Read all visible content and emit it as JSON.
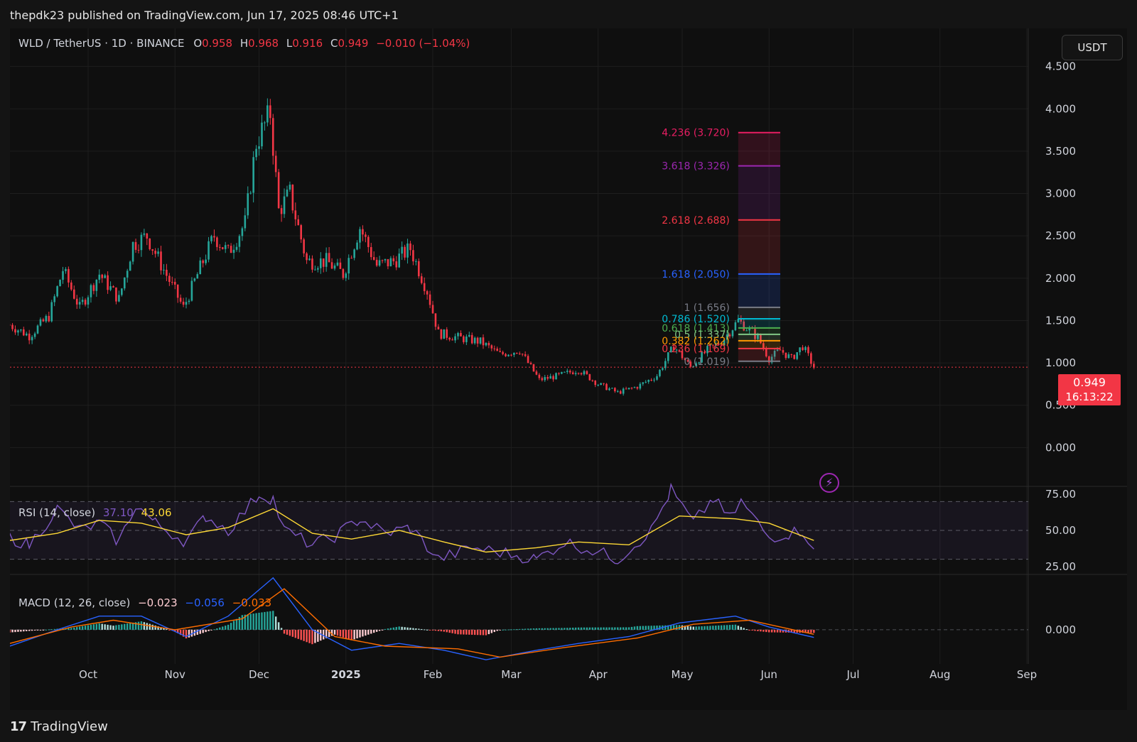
{
  "header": {
    "published_by": "thepdk23 published on TradingView.com, Jun 17, 2025 08:46 UTC+1"
  },
  "symbol_legend": {
    "symbol": "WLD / TetherUS · 1D · BINANCE",
    "open_label": "O",
    "open": "0.958",
    "high_label": "H",
    "high": "0.968",
    "low_label": "L",
    "low": "0.916",
    "close_label": "C",
    "close": "0.949",
    "change": "−0.010 (−1.04%)"
  },
  "currency_button": "USDT",
  "price_badge": {
    "price": "0.949",
    "countdown": "16:13:22"
  },
  "footer": {
    "logo": "17",
    "brand": "TradingView"
  },
  "colors": {
    "up": "#26a69a",
    "down": "#f23645",
    "rsi": "#7e57c2",
    "rsi_ma": "#fdd835",
    "macd": "#2962ff",
    "signal": "#ff6d00"
  },
  "chart_data": [
    {
      "type": "candlestick",
      "title": "WLD / TetherUS · 1D · BINANCE",
      "x_tick_labels": [
        "Oct",
        "Nov",
        "Dec",
        "2025",
        "Feb",
        "Mar",
        "Apr",
        "May",
        "Jun",
        "Jul",
        "Aug",
        "Sep"
      ],
      "x_ticks": [
        "2024-10-01",
        "2024-11-01",
        "2024-12-01",
        "2025-01-01",
        "2025-02-01",
        "2025-03-01",
        "2025-04-01",
        "2025-05-01",
        "2025-06-01",
        "2025-07-01",
        "2025-08-01",
        "2025-09-01"
      ],
      "y_tick_labels": [
        "4.500",
        "4.000",
        "3.500",
        "3.000",
        "2.500",
        "2.000",
        "1.500",
        "1.000",
        "0.500",
        "0.000"
      ],
      "y_ticks": [
        4.5,
        4.0,
        3.5,
        3.0,
        2.5,
        2.0,
        1.5,
        1.0,
        0.5,
        0.0
      ],
      "ylim": [
        -0.45,
        4.95
      ],
      "last_price": 0.949,
      "close_path": [
        {
          "date": "2024-09-03",
          "close": 1.45
        },
        {
          "date": "2024-09-10",
          "close": 1.32
        },
        {
          "date": "2024-09-17",
          "close": 1.55
        },
        {
          "date": "2024-09-22",
          "close": 2.1
        },
        {
          "date": "2024-09-28",
          "close": 1.65
        },
        {
          "date": "2024-10-05",
          "close": 2.05
        },
        {
          "date": "2024-10-12",
          "close": 1.75
        },
        {
          "date": "2024-10-17",
          "close": 2.4
        },
        {
          "date": "2024-10-22",
          "close": 2.5
        },
        {
          "date": "2024-10-28",
          "close": 2.1
        },
        {
          "date": "2024-11-04",
          "close": 1.65
        },
        {
          "date": "2024-11-11",
          "close": 2.2
        },
        {
          "date": "2024-11-15",
          "close": 2.5
        },
        {
          "date": "2024-11-20",
          "close": 2.3
        },
        {
          "date": "2024-11-26",
          "close": 2.65
        },
        {
          "date": "2024-11-30",
          "close": 3.6
        },
        {
          "date": "2024-12-05",
          "close": 3.95
        },
        {
          "date": "2024-12-08",
          "close": 2.8
        },
        {
          "date": "2024-12-12",
          "close": 3.0
        },
        {
          "date": "2024-12-18",
          "close": 2.2
        },
        {
          "date": "2024-12-25",
          "close": 2.2
        },
        {
          "date": "2024-12-31",
          "close": 2.05
        },
        {
          "date": "2025-01-06",
          "close": 2.6
        },
        {
          "date": "2025-01-12",
          "close": 2.15
        },
        {
          "date": "2025-01-18",
          "close": 2.2
        },
        {
          "date": "2025-01-24",
          "close": 2.35
        },
        {
          "date": "2025-01-30",
          "close": 1.85
        },
        {
          "date": "2025-02-03",
          "close": 1.35
        },
        {
          "date": "2025-02-10",
          "close": 1.3
        },
        {
          "date": "2025-02-18",
          "close": 1.25
        },
        {
          "date": "2025-02-25",
          "close": 1.1
        },
        {
          "date": "2025-03-04",
          "close": 1.15
        },
        {
          "date": "2025-03-11",
          "close": 0.8
        },
        {
          "date": "2025-03-18",
          "close": 0.85
        },
        {
          "date": "2025-03-25",
          "close": 0.92
        },
        {
          "date": "2025-04-01",
          "close": 0.75
        },
        {
          "date": "2025-04-08",
          "close": 0.65
        },
        {
          "date": "2025-04-15",
          "close": 0.72
        },
        {
          "date": "2025-04-22",
          "close": 0.85
        },
        {
          "date": "2025-04-28",
          "close": 1.2
        },
        {
          "date": "2025-05-04",
          "close": 0.95
        },
        {
          "date": "2025-05-10",
          "close": 1.15
        },
        {
          "date": "2025-05-15",
          "close": 1.25
        },
        {
          "date": "2025-05-21",
          "close": 1.5
        },
        {
          "date": "2025-05-28",
          "close": 1.3
        },
        {
          "date": "2025-06-01",
          "close": 1.05
        },
        {
          "date": "2025-06-05",
          "close": 1.15
        },
        {
          "date": "2025-06-09",
          "close": 1.05
        },
        {
          "date": "2025-06-13",
          "close": 1.2
        },
        {
          "date": "2025-06-17",
          "close": 0.949
        }
      ],
      "fibonacci_extension": {
        "levels": [
          {
            "ratio": "4.236",
            "price": "3.720",
            "color": "#e91e63"
          },
          {
            "ratio": "3.618",
            "price": "3.326",
            "color": "#9c27b0"
          },
          {
            "ratio": "2.618",
            "price": "2.688",
            "color": "#f23645"
          },
          {
            "ratio": "1.618",
            "price": "2.050",
            "color": "#2962ff"
          },
          {
            "ratio": "1",
            "price": "1.656",
            "color": "#787b86"
          },
          {
            "ratio": "0.786",
            "price": "1.520",
            "color": "#00bcd4"
          },
          {
            "ratio": "0.618",
            "price": "1.413",
            "color": "#4caf50"
          },
          {
            "ratio": "0.5",
            "price": "1.337",
            "color": "#81c784"
          },
          {
            "ratio": "0.382",
            "price": "1.262",
            "color": "#ff9800"
          },
          {
            "ratio": "0.236",
            "price": "1.169",
            "color": "#f23645"
          },
          {
            "ratio": "0",
            "price": "1.019",
            "color": "#787b86"
          }
        ],
        "start_date": "2025-05-21",
        "end_date": "2025-06-05"
      }
    },
    {
      "type": "line",
      "title": "RSI (14, close)",
      "series": [
        {
          "name": "RSI",
          "value": "37.10"
        },
        {
          "name": "RSI-based MA",
          "value": "43.06"
        }
      ],
      "y_tick_labels": [
        "75.00",
        "50.00",
        "25.00"
      ],
      "y_ticks": [
        75,
        50,
        25
      ],
      "bands": {
        "upper": 70,
        "middle": 50,
        "lower": 30
      },
      "ylim": [
        20,
        80
      ],
      "rsi_path": [
        {
          "date": "2024-09-03",
          "v": 45
        },
        {
          "date": "2024-09-10",
          "v": 40
        },
        {
          "date": "2024-09-20",
          "v": 65
        },
        {
          "date": "2024-09-28",
          "v": 50
        },
        {
          "date": "2024-10-05",
          "v": 55
        },
        {
          "date": "2024-10-12",
          "v": 42
        },
        {
          "date": "2024-10-18",
          "v": 68
        },
        {
          "date": "2024-10-25",
          "v": 55
        },
        {
          "date": "2024-11-05",
          "v": 42
        },
        {
          "date": "2024-11-12",
          "v": 60
        },
        {
          "date": "2024-11-20",
          "v": 50
        },
        {
          "date": "2024-12-01",
          "v": 75
        },
        {
          "date": "2024-12-06",
          "v": 72
        },
        {
          "date": "2024-12-10",
          "v": 50
        },
        {
          "date": "2024-12-20",
          "v": 40
        },
        {
          "date": "2024-12-28",
          "v": 46
        },
        {
          "date": "2025-01-06",
          "v": 58
        },
        {
          "date": "2025-01-15",
          "v": 48
        },
        {
          "date": "2025-01-24",
          "v": 52
        },
        {
          "date": "2025-02-03",
          "v": 30
        },
        {
          "date": "2025-02-15",
          "v": 38
        },
        {
          "date": "2025-02-25",
          "v": 35
        },
        {
          "date": "2025-03-10",
          "v": 30
        },
        {
          "date": "2025-03-20",
          "v": 42
        },
        {
          "date": "2025-04-01",
          "v": 35
        },
        {
          "date": "2025-04-08",
          "v": 30
        },
        {
          "date": "2025-04-20",
          "v": 50
        },
        {
          "date": "2025-04-27",
          "v": 78
        },
        {
          "date": "2025-05-05",
          "v": 55
        },
        {
          "date": "2025-05-12",
          "v": 72
        },
        {
          "date": "2025-05-18",
          "v": 58
        },
        {
          "date": "2025-05-22",
          "v": 70
        },
        {
          "date": "2025-06-01",
          "v": 45
        },
        {
          "date": "2025-06-08",
          "v": 48
        },
        {
          "date": "2025-06-13",
          "v": 50
        },
        {
          "date": "2025-06-17",
          "v": 37.1
        }
      ],
      "ma_path": [
        {
          "date": "2024-09-03",
          "v": 43
        },
        {
          "date": "2024-09-20",
          "v": 48
        },
        {
          "date": "2024-10-05",
          "v": 57
        },
        {
          "date": "2024-10-20",
          "v": 55
        },
        {
          "date": "2024-11-05",
          "v": 47
        },
        {
          "date": "2024-11-20",
          "v": 52
        },
        {
          "date": "2024-12-06",
          "v": 65
        },
        {
          "date": "2024-12-20",
          "v": 48
        },
        {
          "date": "2025-01-03",
          "v": 44
        },
        {
          "date": "2025-01-20",
          "v": 50
        },
        {
          "date": "2025-02-05",
          "v": 42
        },
        {
          "date": "2025-02-20",
          "v": 35
        },
        {
          "date": "2025-03-10",
          "v": 38
        },
        {
          "date": "2025-03-25",
          "v": 42
        },
        {
          "date": "2025-04-12",
          "v": 40
        },
        {
          "date": "2025-04-30",
          "v": 60
        },
        {
          "date": "2025-05-20",
          "v": 58
        },
        {
          "date": "2025-06-01",
          "v": 55
        },
        {
          "date": "2025-06-17",
          "v": 43.06
        }
      ]
    },
    {
      "type": "line",
      "title": "MACD (12, 26, close)",
      "series": [
        {
          "name": "Histogram",
          "value": "−0.023"
        },
        {
          "name": "MACD",
          "value": "−0.056"
        },
        {
          "name": "Signal",
          "value": "−0.033"
        }
      ],
      "y_tick_labels": [
        "0.000"
      ],
      "y_ticks": [
        0
      ],
      "ylim": [
        -0.25,
        0.4
      ],
      "macd_path": [
        {
          "date": "2024-09-03",
          "v": -0.12
        },
        {
          "date": "2024-09-20",
          "v": 0.0
        },
        {
          "date": "2024-10-05",
          "v": 0.1
        },
        {
          "date": "2024-10-20",
          "v": 0.1
        },
        {
          "date": "2024-11-05",
          "v": -0.05
        },
        {
          "date": "2024-11-20",
          "v": 0.1
        },
        {
          "date": "2024-12-06",
          "v": 0.38
        },
        {
          "date": "2024-12-20",
          "v": 0.0
        },
        {
          "date": "2025-01-03",
          "v": -0.15
        },
        {
          "date": "2025-01-20",
          "v": -0.1
        },
        {
          "date": "2025-02-05",
          "v": -0.15
        },
        {
          "date": "2025-02-20",
          "v": -0.22
        },
        {
          "date": "2025-03-10",
          "v": -0.15
        },
        {
          "date": "2025-03-25",
          "v": -0.1
        },
        {
          "date": "2025-04-12",
          "v": -0.05
        },
        {
          "date": "2025-04-30",
          "v": 0.05
        },
        {
          "date": "2025-05-20",
          "v": 0.1
        },
        {
          "date": "2025-06-01",
          "v": 0.02
        },
        {
          "date": "2025-06-17",
          "v": -0.056
        }
      ],
      "signal_path": [
        {
          "date": "2024-09-03",
          "v": -0.1
        },
        {
          "date": "2024-09-25",
          "v": 0.02
        },
        {
          "date": "2024-10-10",
          "v": 0.07
        },
        {
          "date": "2024-11-01",
          "v": 0.0
        },
        {
          "date": "2024-11-25",
          "v": 0.08
        },
        {
          "date": "2024-12-10",
          "v": 0.3
        },
        {
          "date": "2024-12-28",
          "v": -0.05
        },
        {
          "date": "2025-01-15",
          "v": -0.12
        },
        {
          "date": "2025-02-10",
          "v": -0.14
        },
        {
          "date": "2025-02-25",
          "v": -0.2
        },
        {
          "date": "2025-03-20",
          "v": -0.13
        },
        {
          "date": "2025-04-15",
          "v": -0.06
        },
        {
          "date": "2025-05-05",
          "v": 0.04
        },
        {
          "date": "2025-05-25",
          "v": 0.07
        },
        {
          "date": "2025-06-17",
          "v": -0.033
        }
      ]
    }
  ]
}
